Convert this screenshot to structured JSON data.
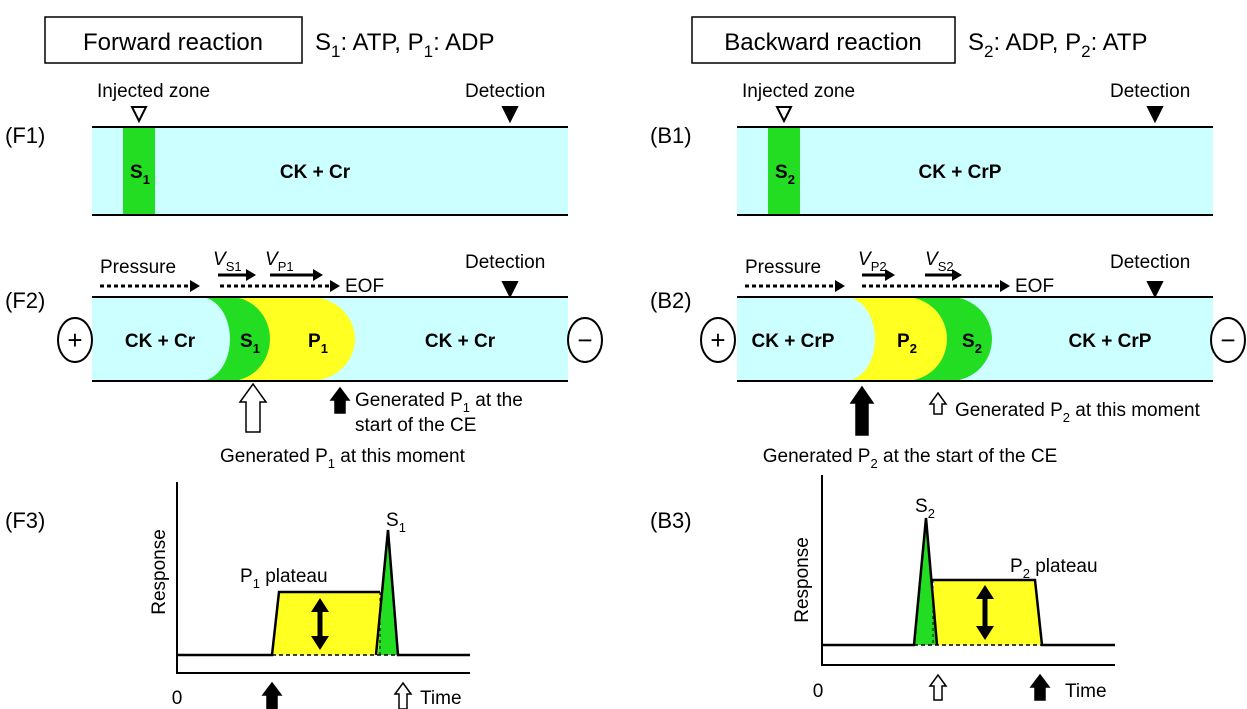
{
  "forward": {
    "title": "Forward reaction",
    "condition": [
      "S",
      "1",
      ": ATP, P",
      "1",
      ": ADP"
    ],
    "f1": {
      "label": "(F1)",
      "injected_zone": "Injected zone",
      "detection": "Detection",
      "zone": [
        "S",
        "1"
      ],
      "buffer": "CK + Cr"
    },
    "f2": {
      "label": "(F2)",
      "pressure": "Pressure",
      "v_first": [
        "V",
        "S1"
      ],
      "v_second": [
        "V",
        "P1"
      ],
      "eof": "EOF",
      "detection": "Detection",
      "anode": "+",
      "cathode": "−",
      "buffer_left": "CK + Cr",
      "substrate": [
        "S",
        "1"
      ],
      "product": [
        "P",
        "1"
      ],
      "buffer_right": "CK + Cr",
      "note_start": [
        "Generated P",
        "1",
        " at the"
      ],
      "note_start_2": "start of the CE",
      "note_moment": [
        "Generated P",
        "1",
        " at this moment"
      ]
    },
    "f3": {
      "label": "(F3)",
      "y_axis": "Response",
      "x_axis": "Time",
      "origin": "0",
      "plateau": [
        "P",
        "1",
        " plateau"
      ],
      "peak": [
        "S",
        "1"
      ]
    }
  },
  "backward": {
    "title": "Backward reaction",
    "condition": [
      "S",
      "2",
      ": ADP, P",
      "2",
      ": ATP"
    ],
    "b1": {
      "label": "(B1)",
      "injected_zone": "Injected zone",
      "detection": "Detection",
      "zone": [
        "S",
        "2"
      ],
      "buffer": "CK + CrP"
    },
    "b2": {
      "label": "(B2)",
      "pressure": "Pressure",
      "v_first": [
        "V",
        "P2"
      ],
      "v_second": [
        "V",
        "S2"
      ],
      "eof": "EOF",
      "detection": "Detection",
      "anode": "+",
      "cathode": "−",
      "buffer_left": "CK + CrP",
      "product": [
        "P",
        "2"
      ],
      "substrate": [
        "S",
        "2"
      ],
      "buffer_right": "CK + CrP",
      "note_moment": [
        "Generated P",
        "2",
        " at this moment"
      ],
      "note_start": [
        "Generated P",
        "2",
        " at the start of the CE"
      ]
    },
    "b3": {
      "label": "(B3)",
      "y_axis": "Response",
      "x_axis": "Time",
      "origin": "0",
      "plateau": [
        "P",
        "2",
        " plateau"
      ],
      "peak": [
        "S",
        "2"
      ]
    }
  }
}
